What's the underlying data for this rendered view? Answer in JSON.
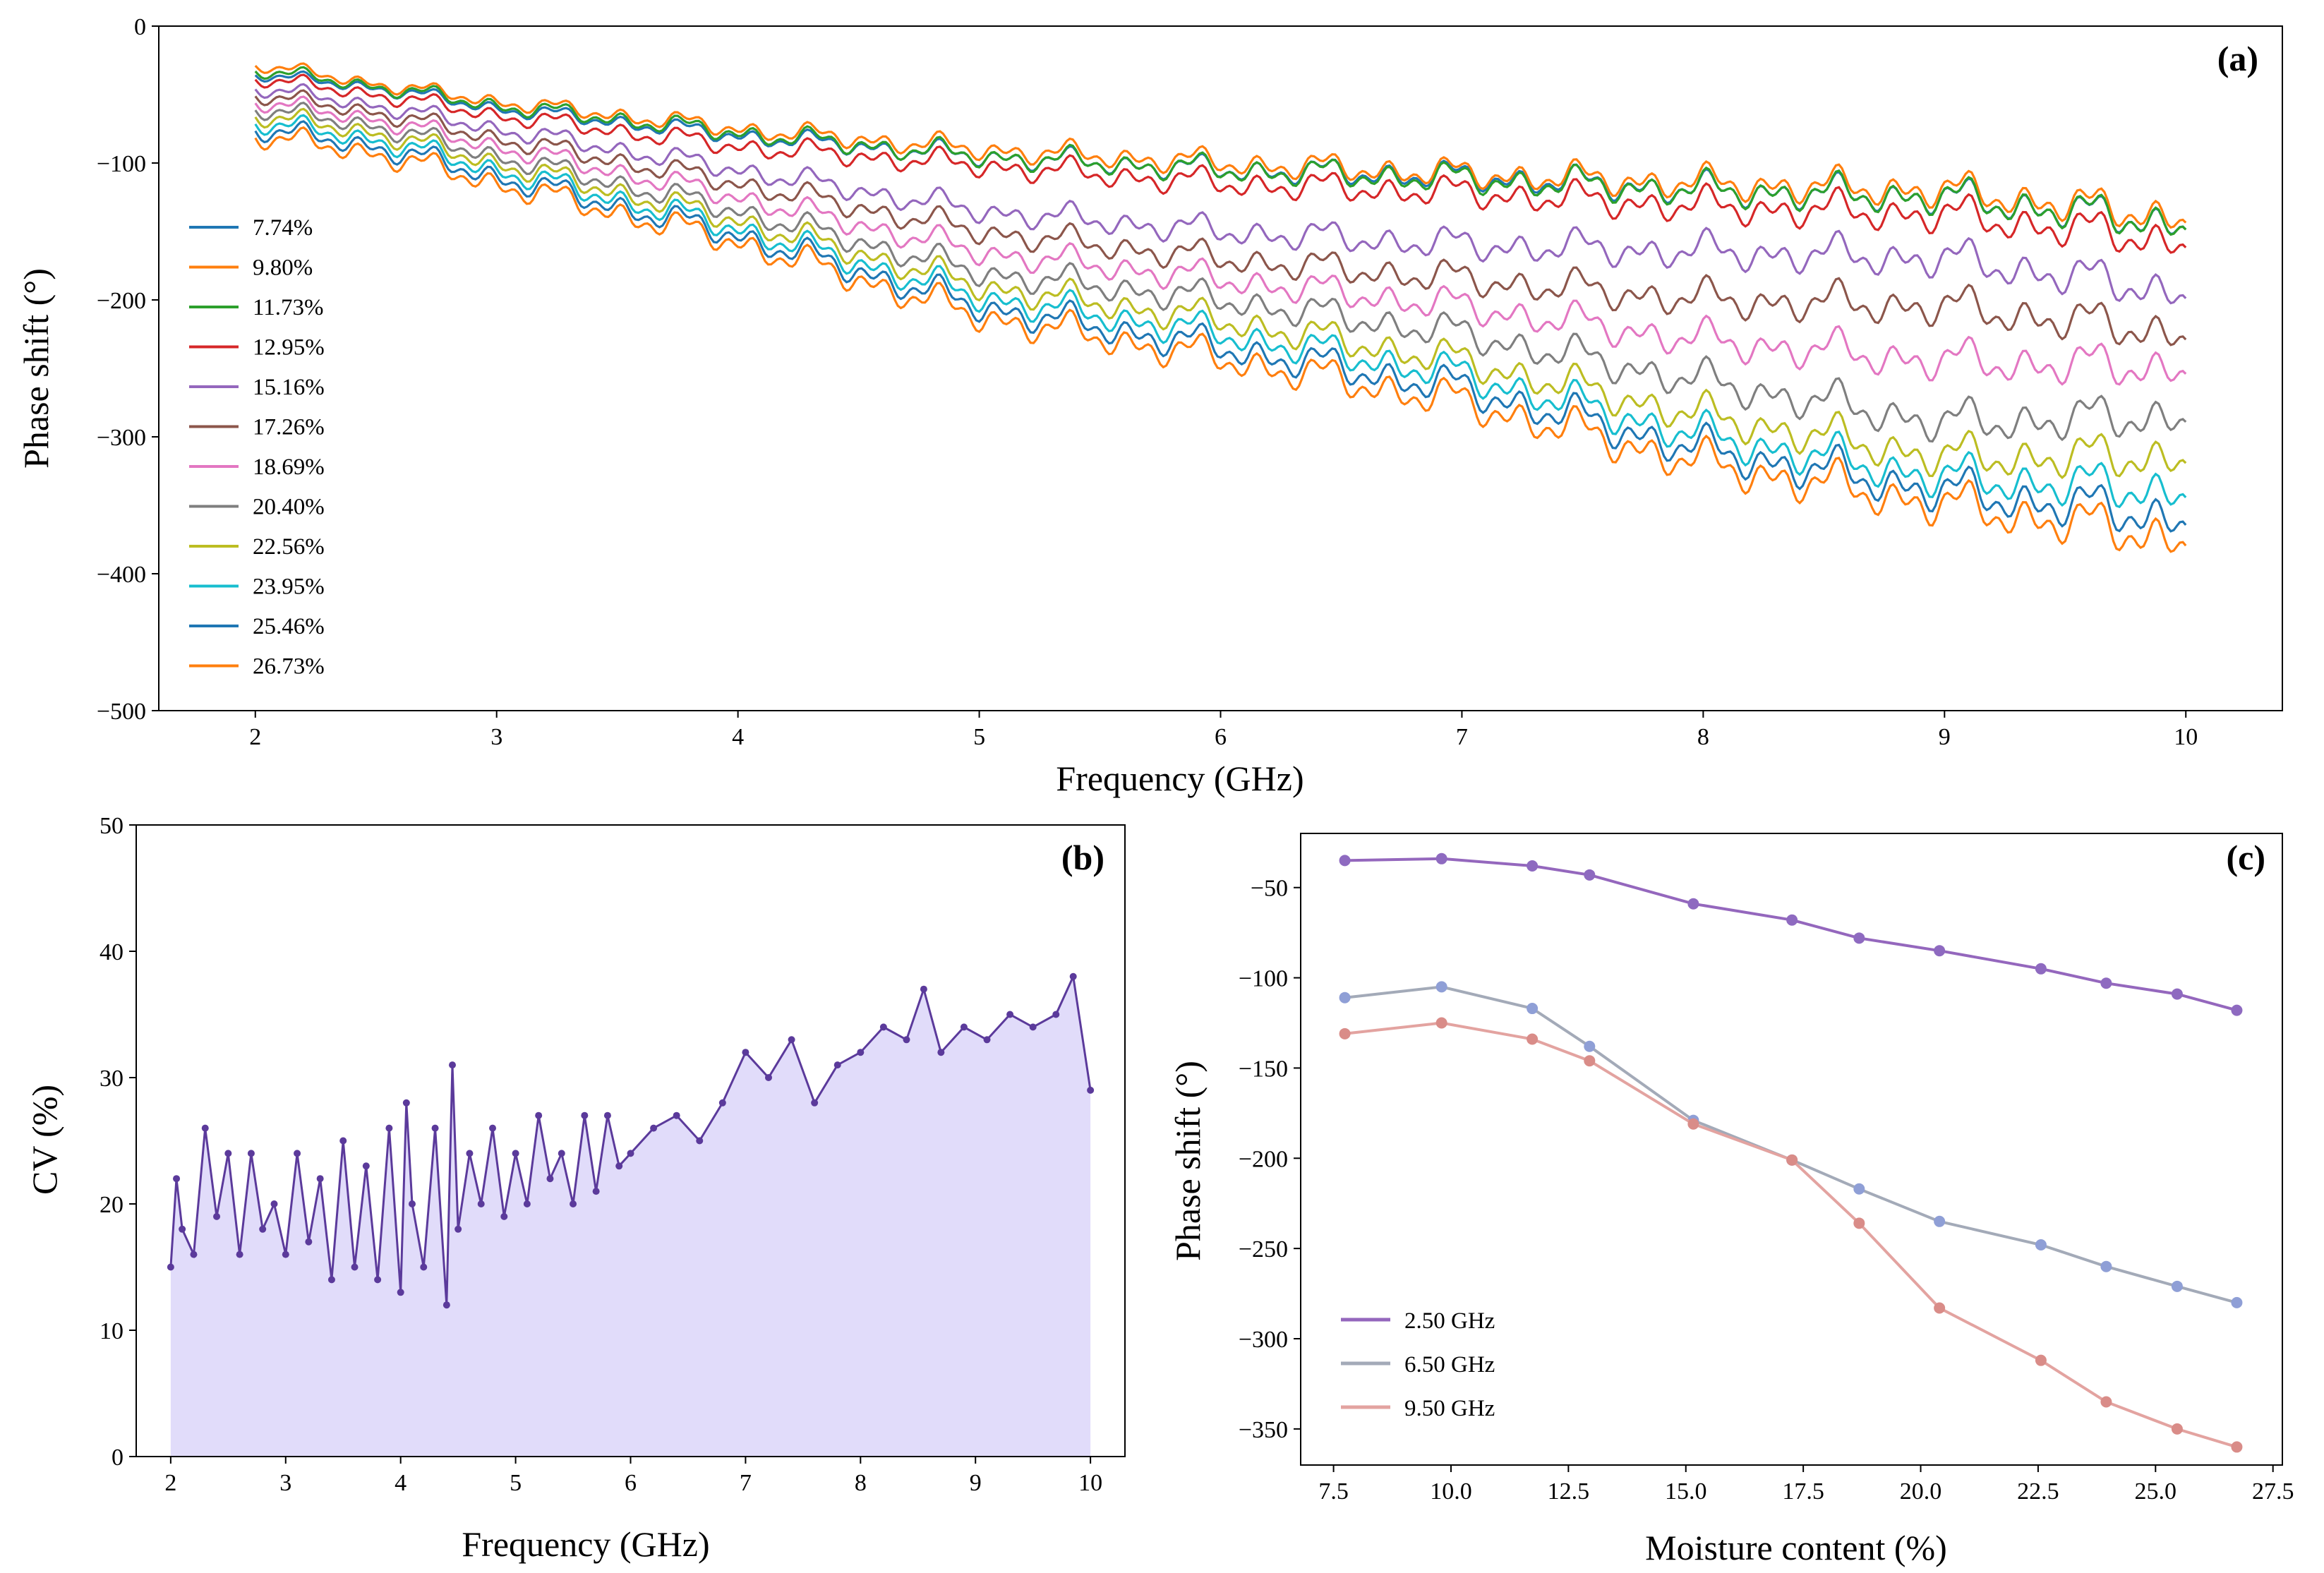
{
  "colors": {
    "tab10": [
      "#1f77b4",
      "#ff7f0e",
      "#2ca02c",
      "#d62728",
      "#9467bd",
      "#8c564b",
      "#e377c2",
      "#7f7f7f",
      "#bcbd22",
      "#17becf",
      "#1f77b4",
      "#ff7f0e"
    ],
    "cv_line": "#5b3a9b",
    "cv_fill": "#e1dcfa",
    "c_series": [
      "#9467bd",
      "#a3aab8",
      "#e3a3a0"
    ],
    "c_markers": [
      "#8e6ac0",
      "#8f9fd6",
      "#d98c88"
    ]
  },
  "chart_data": [
    {
      "id": "a",
      "type": "line",
      "panel_label": "(a)",
      "xlabel": "Frequency (GHz)",
      "ylabel": "Phase shift (°)",
      "xlim": [
        1.6,
        10.4
      ],
      "ylim": [
        -500,
        0
      ],
      "xticks": [
        2,
        3,
        4,
        5,
        6,
        7,
        8,
        9,
        10
      ],
      "yticks": [
        0,
        -100,
        -200,
        -300,
        -400,
        -500
      ],
      "ytick_labels": [
        "0",
        "−100",
        "−200",
        "−300",
        "−400",
        "−500"
      ],
      "legend_position": "center-left",
      "series": [
        {
          "name": "7.74%",
          "x": [
            2,
            2.5,
            3,
            4,
            5,
            6,
            7,
            8,
            9,
            10
          ],
          "values": [
            -35,
            -45,
            -60,
            -80,
            -95,
            -105,
            -110,
            -120,
            -125,
            -145
          ]
        },
        {
          "name": "9.80%",
          "x": [
            2,
            2.5,
            3,
            4,
            5,
            6,
            7,
            8,
            9,
            10
          ],
          "values": [
            -28,
            -42,
            -55,
            -75,
            -90,
            -100,
            -108,
            -115,
            -120,
            -140
          ]
        },
        {
          "name": "11.73%",
          "x": [
            2,
            2.5,
            3,
            4,
            5,
            6,
            7,
            8,
            9,
            10
          ],
          "values": [
            -32,
            -44,
            -58,
            -78,
            -95,
            -105,
            -112,
            -120,
            -125,
            -145
          ]
        },
        {
          "name": "12.95%",
          "x": [
            2,
            2.5,
            3,
            4,
            5,
            6,
            7,
            8,
            9,
            10
          ],
          "values": [
            -38,
            -50,
            -65,
            -88,
            -102,
            -115,
            -122,
            -132,
            -138,
            -158
          ]
        },
        {
          "name": "15.16%",
          "x": [
            2,
            2.5,
            3,
            4,
            5,
            6,
            7,
            8,
            9,
            10
          ],
          "values": [
            -45,
            -58,
            -75,
            -105,
            -135,
            -150,
            -160,
            -165,
            -170,
            -195
          ]
        },
        {
          "name": "17.26%",
          "x": [
            2,
            2.5,
            3,
            4,
            5,
            6,
            7,
            8,
            9,
            10
          ],
          "values": [
            -50,
            -63,
            -82,
            -115,
            -150,
            -170,
            -185,
            -200,
            -205,
            -225
          ]
        },
        {
          "name": "18.69%",
          "x": [
            2,
            2.5,
            3,
            4,
            5,
            6,
            7,
            8,
            9,
            10
          ],
          "values": [
            -55,
            -68,
            -88,
            -125,
            -165,
            -185,
            -205,
            -230,
            -245,
            -250
          ]
        },
        {
          "name": "20.40%",
          "x": [
            2,
            2.5,
            3,
            4,
            5,
            6,
            7,
            8,
            9,
            10
          ],
          "values": [
            -60,
            -73,
            -95,
            -135,
            -180,
            -200,
            -225,
            -260,
            -290,
            -285
          ]
        },
        {
          "name": "22.56%",
          "x": [
            2,
            2.5,
            3,
            4,
            5,
            6,
            7,
            8,
            9,
            10
          ],
          "values": [
            -65,
            -78,
            -100,
            -142,
            -190,
            -215,
            -245,
            -285,
            -315,
            -315
          ]
        },
        {
          "name": "23.95%",
          "x": [
            2,
            2.5,
            3,
            4,
            5,
            6,
            7,
            8,
            9,
            10
          ],
          "values": [
            -70,
            -83,
            -105,
            -148,
            -198,
            -225,
            -255,
            -300,
            -330,
            -340
          ]
        },
        {
          "name": "25.46%",
          "x": [
            2,
            2.5,
            3,
            4,
            5,
            6,
            7,
            8,
            9,
            10
          ],
          "values": [
            -75,
            -88,
            -110,
            -153,
            -205,
            -235,
            -265,
            -310,
            -340,
            -360
          ]
        },
        {
          "name": "26.73%",
          "x": [
            2,
            2.5,
            3,
            4,
            5,
            6,
            7,
            8,
            9,
            10
          ],
          "values": [
            -80,
            -93,
            -115,
            -158,
            -212,
            -243,
            -275,
            -320,
            -350,
            -375
          ]
        }
      ]
    },
    {
      "id": "b",
      "type": "area",
      "panel_label": "(b)",
      "xlabel": "Frequency (GHz)",
      "ylabel": "CV (%)",
      "xlim": [
        1.7,
        10.3
      ],
      "ylim": [
        0,
        50
      ],
      "xticks": [
        2,
        3,
        4,
        5,
        6,
        7,
        8,
        9,
        10
      ],
      "yticks": [
        0,
        10,
        20,
        30,
        40,
        50
      ],
      "x": [
        2,
        2.05,
        2.1,
        2.2,
        2.3,
        2.4,
        2.5,
        2.6,
        2.7,
        2.8,
        2.9,
        3.0,
        3.1,
        3.2,
        3.3,
        3.4,
        3.5,
        3.6,
        3.7,
        3.8,
        3.9,
        4.0,
        4.05,
        4.1,
        4.2,
        4.3,
        4.4,
        4.45,
        4.5,
        4.6,
        4.7,
        4.8,
        4.9,
        5.0,
        5.1,
        5.2,
        5.3,
        5.4,
        5.5,
        5.6,
        5.7,
        5.8,
        5.9,
        6.0,
        6.2,
        6.4,
        6.6,
        6.8,
        7.0,
        7.2,
        7.4,
        7.6,
        7.8,
        8.0,
        8.2,
        8.4,
        8.55,
        8.7,
        8.9,
        9.1,
        9.3,
        9.5,
        9.7,
        9.85,
        10.0
      ],
      "values": [
        15,
        22,
        18,
        16,
        26,
        19,
        24,
        16,
        24,
        18,
        20,
        16,
        24,
        17,
        22,
        14,
        25,
        15,
        23,
        14,
        26,
        13,
        28,
        20,
        15,
        26,
        12,
        31,
        18,
        24,
        20,
        26,
        19,
        24,
        20,
        27,
        22,
        24,
        20,
        27,
        21,
        27,
        23,
        24,
        26,
        27,
        25,
        28,
        32,
        30,
        33,
        28,
        31,
        32,
        34,
        33,
        37,
        32,
        34,
        33,
        35,
        34,
        35,
        38,
        29
      ]
    },
    {
      "id": "c",
      "type": "line",
      "panel_label": "(c)",
      "xlabel": "Moisture content (%)",
      "ylabel": "Phase shift (°)",
      "xlim": [
        6.8,
        27.7
      ],
      "ylim": [
        -370,
        -20
      ],
      "xticks": [
        7.5,
        10.0,
        12.5,
        15.0,
        17.5,
        20.0,
        22.5,
        25.0,
        27.5
      ],
      "xtick_labels": [
        "7.5",
        "10.0",
        "12.5",
        "15.0",
        "17.5",
        "20.0",
        "22.5",
        "25.0",
        "27.5"
      ],
      "yticks": [
        -50,
        -100,
        -150,
        -200,
        -250,
        -300,
        -350
      ],
      "ytick_labels": [
        "−50",
        "−100",
        "−150",
        "−200",
        "−250",
        "−300",
        "−350"
      ],
      "legend_position": "lower-left",
      "x": [
        7.74,
        9.8,
        11.73,
        12.95,
        15.16,
        17.26,
        18.69,
        20.4,
        22.56,
        23.95,
        25.46,
        26.73
      ],
      "series": [
        {
          "name": "2.50 GHz",
          "values": [
            -35,
            -34,
            -38,
            -43,
            -59,
            -68,
            -78,
            -85,
            -95,
            -103,
            -109,
            -118
          ]
        },
        {
          "name": "6.50 GHz",
          "values": [
            -111,
            -105,
            -117,
            -138,
            -179,
            -201,
            -217,
            -235,
            -248,
            -260,
            -271,
            -280
          ]
        },
        {
          "name": "9.50 GHz",
          "values": [
            -131,
            -125,
            -134,
            -146,
            -181,
            -201,
            -236,
            -283,
            -312,
            -335,
            -350,
            -360
          ]
        }
      ]
    }
  ]
}
